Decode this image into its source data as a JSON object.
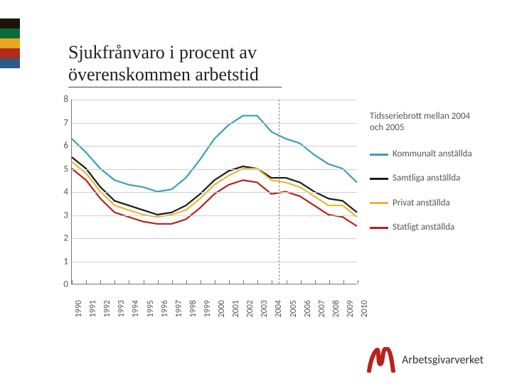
{
  "title": "Sjukfrånvaro i procent av överenskommen arbetstid",
  "sidebar_colors": [
    "#1e120c",
    "#0a6b3b",
    "#e9a81c",
    "#b22b1b",
    "#2e5a87"
  ],
  "chart": {
    "type": "line",
    "xlim": [
      1990,
      2010
    ],
    "ylim": [
      0,
      8
    ],
    "ytick_step": 1,
    "xtick_step": 1,
    "background_color": "#ffffff",
    "grid_color": "#cfcfcf",
    "axis_color": "#777777",
    "tick_font_size": 12,
    "tick_color": "#555555",
    "vline_x": 2004.5,
    "vline_style": "dashed",
    "vline_color": "#888888",
    "note": "Tidsseriebrott mellan 2004 och 2005",
    "note_color": "#555555",
    "note_fontsize": 13,
    "line_width": 2.2,
    "years": [
      1990,
      1991,
      1992,
      1993,
      1994,
      1995,
      1996,
      1997,
      1998,
      1999,
      2000,
      2001,
      2002,
      2003,
      2004,
      2005,
      2006,
      2007,
      2008,
      2009,
      2010
    ],
    "series": [
      {
        "name": "Kommunalt anställda",
        "color": "#3aa0b5",
        "values": [
          6.3,
          5.7,
          5.0,
          4.5,
          4.3,
          4.2,
          4.0,
          4.1,
          4.6,
          5.4,
          6.3,
          6.9,
          7.3,
          7.3,
          6.6,
          6.3,
          6.1,
          5.6,
          5.2,
          5.0,
          4.4
        ]
      },
      {
        "name": "Samtliga anställda",
        "color": "#1a1a1a",
        "values": [
          5.5,
          5.0,
          4.2,
          3.6,
          3.4,
          3.2,
          3.0,
          3.1,
          3.4,
          3.9,
          4.5,
          4.9,
          5.1,
          5.0,
          4.6,
          4.6,
          4.4,
          4.0,
          3.7,
          3.6,
          3.1
        ]
      },
      {
        "name": "Privat anställda",
        "color": "#e9b836",
        "values": [
          5.3,
          4.8,
          4.0,
          3.4,
          3.2,
          3.0,
          2.9,
          3.0,
          3.2,
          3.7,
          4.3,
          4.7,
          5.0,
          5.0,
          4.5,
          4.4,
          4.2,
          3.8,
          3.4,
          3.4,
          2.9
        ]
      },
      {
        "name": "Statligt anställda",
        "color": "#b8221a",
        "values": [
          5.0,
          4.5,
          3.7,
          3.1,
          2.9,
          2.7,
          2.6,
          2.6,
          2.8,
          3.3,
          3.9,
          4.3,
          4.5,
          4.4,
          3.9,
          4.0,
          3.8,
          3.4,
          3.0,
          2.9,
          2.5
        ]
      }
    ]
  },
  "logo_text": "Arbetsgivarverket",
  "logo_color": "#b8221a"
}
